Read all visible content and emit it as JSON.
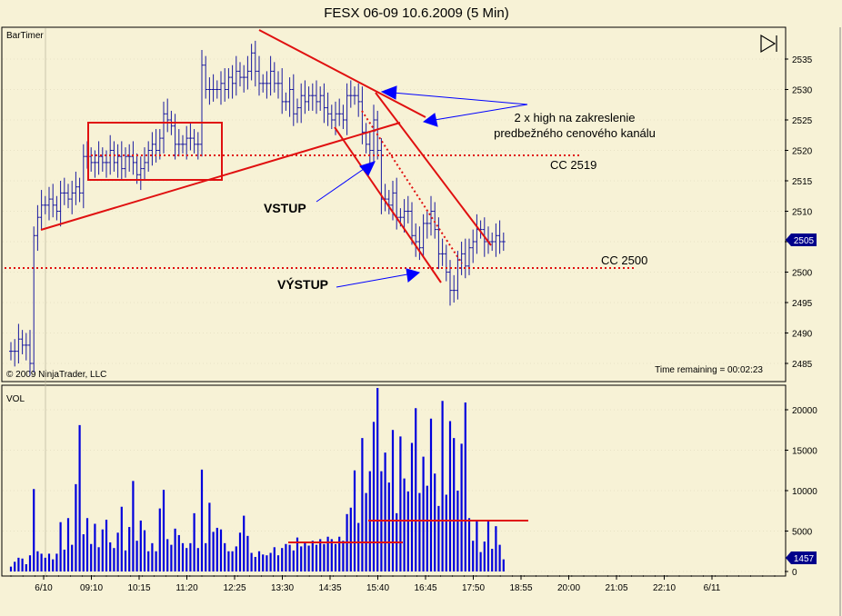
{
  "title": "FESX 06-09  10.6.2009 (5 Min)",
  "indicator_label": "BarTimer",
  "copyright": "© 2009 NinjaTrader, LLC",
  "time_remaining": "Time remaining = 00:02:23",
  "volume_label": "VOL",
  "current_price_badge": "2505",
  "current_volume_badge": "1457",
  "annotations": {
    "double_high_line1": "2 x high na zakreslenie",
    "double_high_line2": "predbežného cenového kanálu",
    "entry": "VSTUP",
    "exit": "VÝSTUP",
    "level_2519": "CC 2519",
    "level_2500": "CC 2500"
  },
  "colors": {
    "background": "#f7f2d6",
    "price_bar": "#1a1aa0",
    "volume_bar": "#0000dd",
    "annotation_red": "#e01010",
    "arrow_blue": "#0000ff",
    "badge": "#00008b"
  },
  "chart_data": [
    {
      "type": "ohlc",
      "title": "FESX 06-09  10.6.2009 (5 Min)",
      "ylim": [
        2482,
        2538
      ],
      "y_ticks": [
        2485,
        2490,
        2495,
        2500,
        2505,
        2510,
        2515,
        2520,
        2525,
        2530,
        2535
      ],
      "x_tick_labels": [
        "6/10",
        "09:10",
        "10:15",
        "11:20",
        "12:25",
        "13:30",
        "14:35",
        "15:40",
        "16:45",
        "17:50",
        "18:55",
        "20:00",
        "21:05",
        "22:10",
        "6/11"
      ],
      "last_price": 2505,
      "levels": [
        2519,
        2500
      ],
      "close": [
        2487,
        2487,
        2489,
        2488,
        2488,
        2485,
        2506,
        2509,
        2511,
        2511,
        2512,
        2511,
        2510,
        2513,
        2513,
        2512,
        2513,
        2514,
        2513,
        2519,
        2519,
        2518,
        2518,
        2519,
        2518,
        2518,
        2520,
        2518,
        2519,
        2517,
        2519,
        2519,
        2518,
        2516,
        2517,
        2518,
        2520,
        2521,
        2520,
        2522,
        2526,
        2525,
        2524,
        2521,
        2521,
        2521,
        2522,
        2522,
        2521,
        2521,
        2534,
        2530,
        2530,
        2530,
        2530,
        2531,
        2530,
        2532,
        2531,
        2533,
        2532,
        2532,
        2533,
        2536,
        2533,
        2531,
        2531,
        2531,
        2533,
        2531,
        2531,
        2528,
        2528,
        2530,
        2526,
        2527,
        2529,
        2528,
        2529,
        2529,
        2528,
        2529,
        2527,
        2526,
        2525,
        2526,
        2526,
        2525,
        2529,
        2529,
        2529,
        2528,
        2523,
        2521,
        2520,
        2525,
        2520,
        2512,
        2512,
        2511,
        2513,
        2509,
        2509,
        2510,
        2510,
        2506,
        2505,
        2504,
        2508,
        2508,
        2510,
        2507,
        2503,
        2503,
        2500,
        2497,
        2497,
        2502,
        2503,
        2501,
        2504,
        2505,
        2507,
        2507,
        2505,
        2505,
        2505,
        2506,
        2505,
        2505
      ]
    },
    {
      "type": "bar",
      "title": "VOL",
      "ylim": [
        0,
        23500
      ],
      "y_ticks": [
        0,
        5000,
        10000,
        15000,
        20000
      ],
      "last_value": 1457,
      "values": [
        600,
        1200,
        1700,
        1600,
        900,
        2000,
        10200,
        2500,
        2200,
        1700,
        2200,
        1500,
        2200,
        6100,
        2700,
        6600,
        3300,
        10800,
        18100,
        4600,
        6600,
        3400,
        5900,
        3000,
        5200,
        6400,
        3600,
        2900,
        4800,
        8000,
        2600,
        5500,
        11200,
        3800,
        6300,
        5100,
        2500,
        3500,
        2500,
        7800,
        10100,
        4000,
        3300,
        5300,
        4500,
        3500,
        2900,
        3500,
        7200,
        2900,
        12600,
        3500,
        8500,
        4900,
        5400,
        5200,
        3500,
        2500,
        2500,
        3100,
        4800,
        6900,
        4400,
        2300,
        1800,
        2500,
        2100,
        2000,
        2300,
        3000,
        2000,
        2900,
        3400,
        3300,
        2600,
        4200,
        3100,
        3600,
        3200,
        3800,
        3300,
        4000,
        3400,
        4300,
        4000,
        3400,
        4300,
        3800,
        7100,
        7900,
        12500,
        6000,
        16500,
        9700,
        12400,
        18500,
        22700,
        12400,
        14700,
        11000,
        17500,
        7200,
        16700,
        11500,
        9900,
        15900,
        20200,
        9700,
        14200,
        10600,
        18900,
        12100,
        8100,
        21100,
        9500,
        18600,
        16500,
        10000,
        15800,
        20900,
        6600,
        3800,
        6400,
        2400,
        3700,
        6400,
        2800,
        5600,
        3300,
        1500
      ]
    }
  ]
}
